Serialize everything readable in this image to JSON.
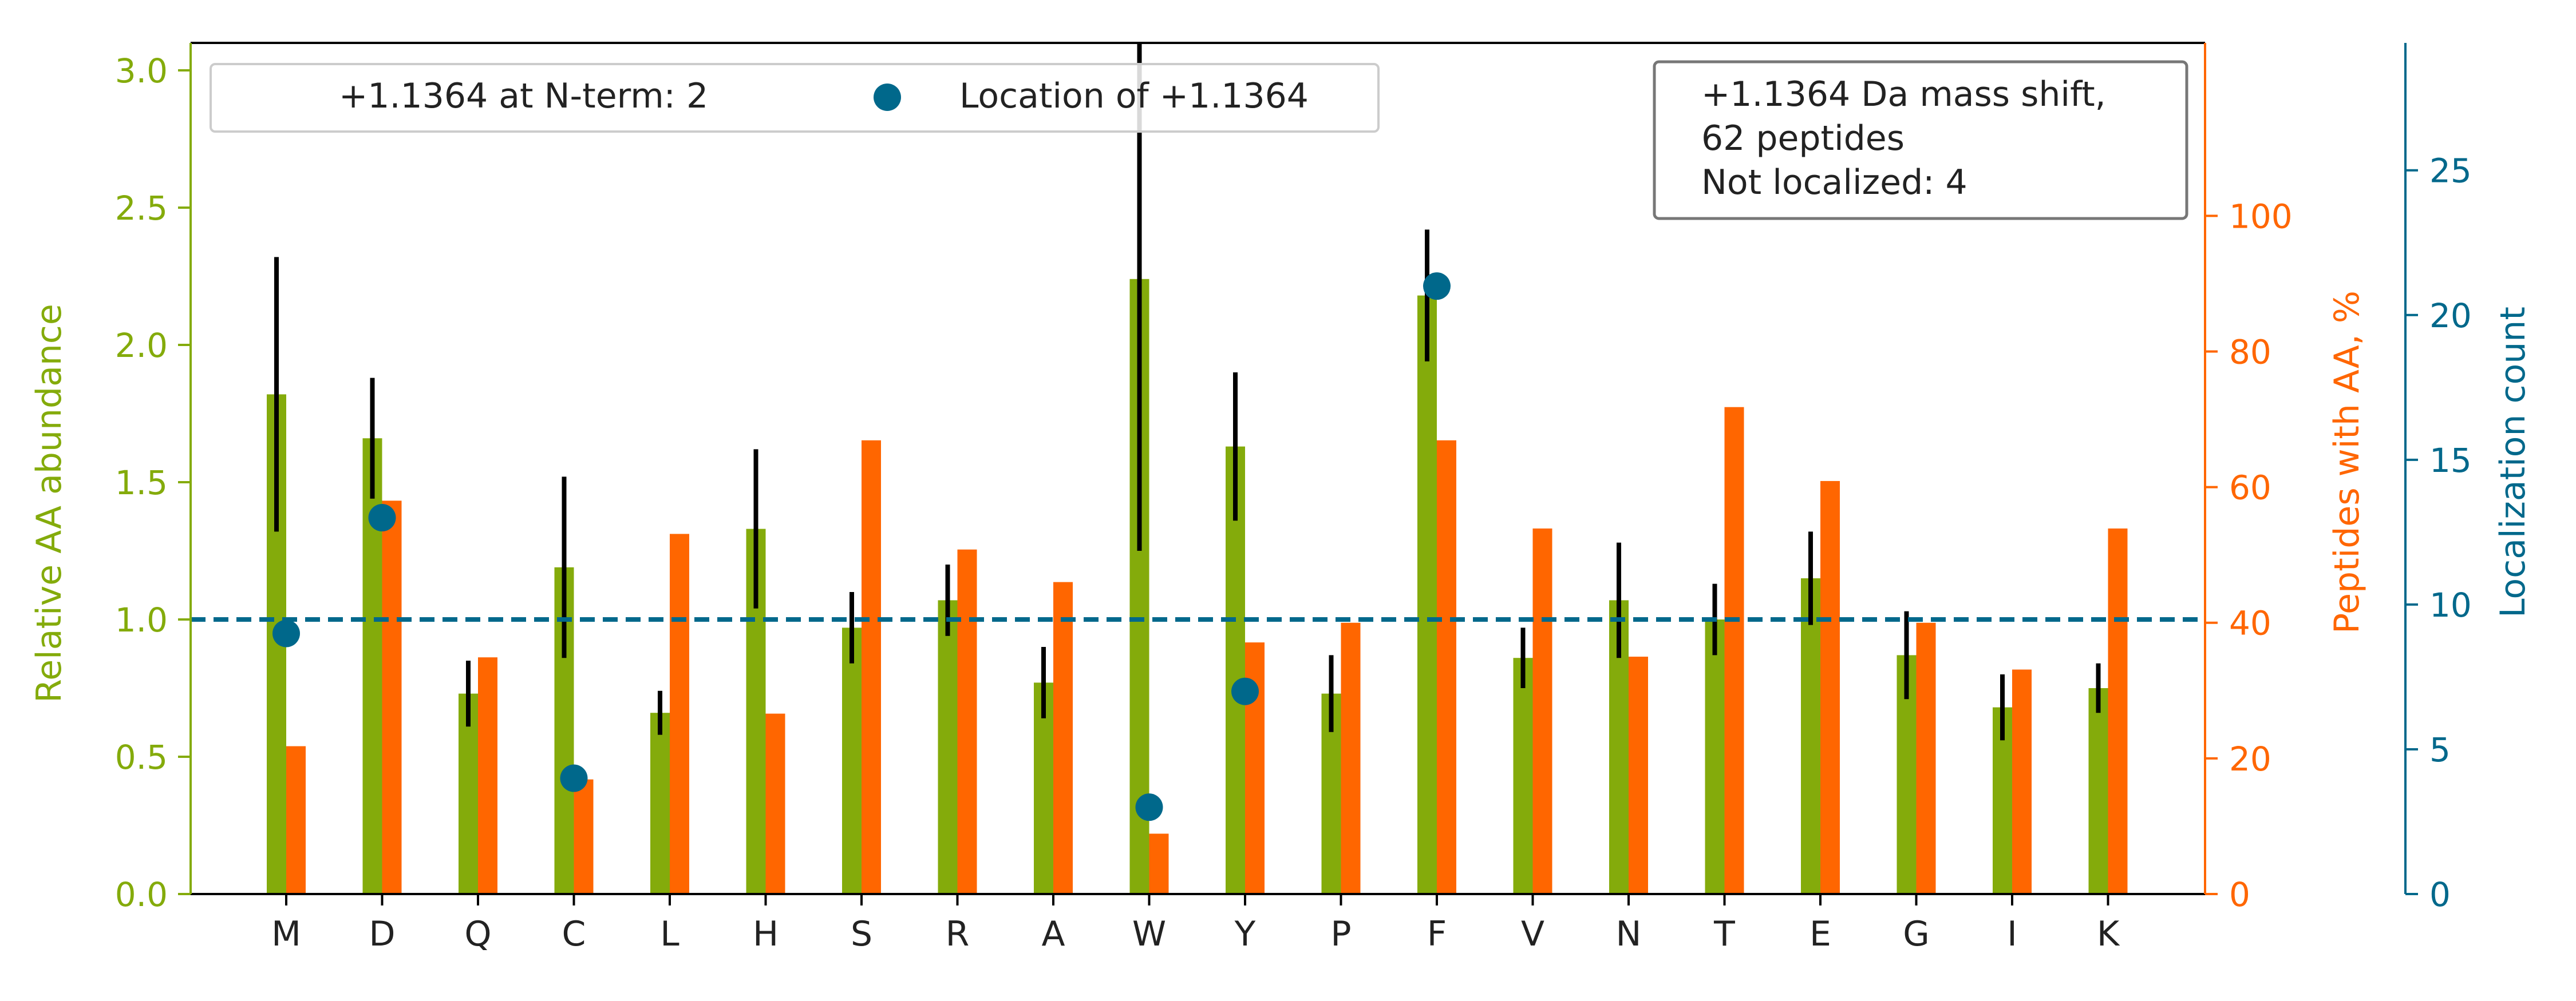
{
  "chart_data": {
    "type": "bar",
    "categories": [
      "M",
      "D",
      "Q",
      "C",
      "L",
      "H",
      "S",
      "R",
      "A",
      "W",
      "Y",
      "P",
      "F",
      "V",
      "N",
      "T",
      "E",
      "G",
      "I",
      "K"
    ],
    "series": [
      {
        "axis": "left",
        "color": "#84ab0b",
        "values": [
          1.82,
          1.66,
          0.73,
          1.19,
          0.66,
          1.33,
          0.97,
          1.07,
          0.77,
          2.24,
          1.63,
          0.73,
          2.18,
          0.86,
          1.07,
          1.0,
          1.15,
          0.87,
          0.68,
          0.75
        ],
        "error": [
          0.5,
          0.22,
          0.12,
          0.33,
          0.08,
          0.29,
          0.13,
          0.13,
          0.13,
          0.99,
          0.27,
          0.14,
          0.24,
          0.11,
          0.21,
          0.13,
          0.17,
          0.16,
          0.12,
          0.09
        ]
      },
      {
        "axis": "right",
        "color": "#ff6600",
        "values": [
          21.8,
          58.0,
          34.9,
          16.9,
          53.1,
          26.6,
          66.9,
          50.8,
          46.0,
          8.9,
          37.1,
          40.0,
          66.9,
          53.9,
          35.0,
          71.8,
          60.9,
          40.0,
          33.1,
          53.9
        ]
      },
      {
        "name": "Location of +1.1364",
        "axis": "far_right",
        "type": "scatter",
        "color": "#00688b",
        "x": [
          "M",
          "D",
          "C",
          "W",
          "Y",
          "F"
        ],
        "values": [
          9,
          13,
          4,
          3,
          7,
          21
        ]
      }
    ],
    "axes": {
      "left": {
        "label": "Relative AA abundance",
        "ylim": [
          0,
          3.1
        ],
        "ticks": [
          0.0,
          0.5,
          1.0,
          1.5,
          2.0,
          2.5,
          3.0
        ],
        "tick_labels": [
          "0.0",
          "0.5",
          "1.0",
          "1.5",
          "2.0",
          "2.5",
          "3.0"
        ],
        "color": "#84ab0b"
      },
      "right": {
        "label": "Peptides with AA, %",
        "ylim": [
          0,
          125.5
        ],
        "ticks": [
          0,
          20,
          40,
          60,
          80,
          100
        ],
        "tick_labels": [
          "0",
          "20",
          "40",
          "60",
          "80",
          "100"
        ],
        "color": "#ff6600"
      },
      "far_right": {
        "label": "Localization count",
        "ylim": [
          0,
          29.4
        ],
        "ticks": [
          0,
          5,
          10,
          15,
          20,
          25
        ],
        "tick_labels": [
          "0",
          "5",
          "10",
          "15",
          "20",
          "25"
        ],
        "color": "#00688b"
      }
    },
    "reference_line": {
      "axis": "left",
      "y": 1.0,
      "color": "#00688b",
      "style": "dashed"
    },
    "legend": {
      "placement": "top-left",
      "entries": [
        "+1.1364 at N-term: 2",
        "Location of +1.1364"
      ]
    },
    "annotation": {
      "placement": "top-right",
      "lines": [
        "+1.1364 Da mass shift,",
        "62 peptides",
        "Not localized: 4"
      ]
    },
    "grid": false
  }
}
